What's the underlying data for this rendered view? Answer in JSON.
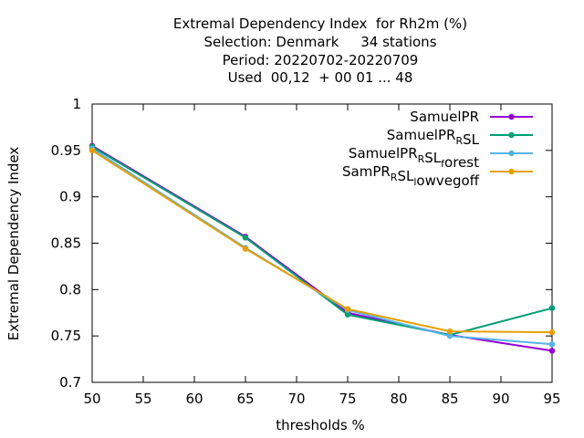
{
  "chart_data": {
    "type": "line",
    "title_lines": [
      "Extremal Dependency Index  for Rh2m (%)",
      "Selection: Denmark     34 stations",
      "Period: 20220702-20220709",
      "Used  00,12  + 00 01 ... 48"
    ],
    "xlabel": "thresholds %",
    "ylabel": "Extremal Dependency Index",
    "xlim": [
      50,
      95
    ],
    "ylim": [
      0.7,
      1.0
    ],
    "x_ticks": [
      50,
      55,
      60,
      65,
      70,
      75,
      80,
      85,
      90,
      95
    ],
    "y_ticks": [
      0.7,
      0.75,
      0.8,
      0.85,
      0.9,
      0.95,
      1.0
    ],
    "y_tick_labels": [
      "0.7",
      "0.75",
      "0.8",
      "0.85",
      "0.9",
      "0.95",
      "1"
    ],
    "grid": false,
    "legend_position": "top-right",
    "x": [
      50,
      65,
      75,
      85,
      95
    ],
    "series": [
      {
        "name": "SamuelPR",
        "name_parts": [
          {
            "t": "SamuelPR",
            "sub": false
          }
        ],
        "color": "#9400d3",
        "values": [
          0.955,
          0.857,
          0.775,
          0.751,
          0.734
        ]
      },
      {
        "name": "SamuelPR_RSL",
        "name_parts": [
          {
            "t": "SamuelPR",
            "sub": false
          },
          {
            "t": "R",
            "sub": true
          },
          {
            "t": "SL",
            "sub": false
          }
        ],
        "color": "#009e73",
        "values": [
          0.954,
          0.856,
          0.773,
          0.751,
          0.78
        ]
      },
      {
        "name": "SamuelPR_RSL_forest",
        "name_parts": [
          {
            "t": "SamuelPR",
            "sub": false
          },
          {
            "t": "R",
            "sub": true
          },
          {
            "t": "SL",
            "sub": false
          },
          {
            "t": "f",
            "sub": true
          },
          {
            "t": "orest",
            "sub": false
          }
        ],
        "color": "#56b4e9",
        "values": [
          0.952,
          0.845,
          0.778,
          0.75,
          0.741
        ]
      },
      {
        "name": "SamPR_RSL_lowvegoff",
        "name_parts": [
          {
            "t": "SamPR",
            "sub": false
          },
          {
            "t": "R",
            "sub": true
          },
          {
            "t": "SL",
            "sub": false
          },
          {
            "t": "l",
            "sub": true
          },
          {
            "t": "owvegoff",
            "sub": false
          }
        ],
        "color": "#e69f00",
        "values": [
          0.95,
          0.844,
          0.779,
          0.755,
          0.754
        ]
      }
    ]
  }
}
